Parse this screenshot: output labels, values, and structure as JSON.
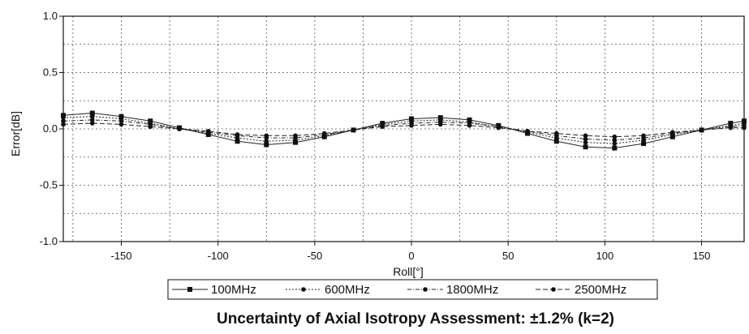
{
  "chart_data": {
    "type": "line",
    "xlabel": "Roll[°]",
    "ylabel": "Error[dB]",
    "xlim": [
      -180,
      172
    ],
    "ylim": [
      -1.0,
      1.0
    ],
    "x_ticks": [
      -150,
      -100,
      -50,
      0,
      50,
      100,
      150
    ],
    "y_ticks": [
      -1.0,
      -0.5,
      0.0,
      0.5,
      1.0
    ],
    "y_tick_labels": [
      "-1.0",
      "-0.5",
      "0.0",
      "0.5",
      "1.0"
    ],
    "grid": true,
    "legend_position": "bottom",
    "x": [
      -180,
      -165,
      -150,
      -135,
      -120,
      -105,
      -90,
      -75,
      -60,
      -45,
      -30,
      -15,
      0,
      15,
      30,
      45,
      60,
      75,
      90,
      105,
      120,
      135,
      150,
      165,
      172
    ],
    "series": [
      {
        "name": "100MHz",
        "marker": "square",
        "values": [
          0.12,
          0.14,
          0.11,
          0.07,
          0.01,
          -0.05,
          -0.11,
          -0.14,
          -0.12,
          -0.07,
          -0.01,
          0.05,
          0.09,
          0.1,
          0.08,
          0.03,
          -0.04,
          -0.11,
          -0.16,
          -0.17,
          -0.13,
          -0.07,
          -0.01,
          0.05,
          0.07
        ]
      },
      {
        "name": "600MHz",
        "marker": "dot",
        "values": [
          0.1,
          0.11,
          0.09,
          0.05,
          0.0,
          -0.04,
          -0.08,
          -0.11,
          -0.1,
          -0.06,
          -0.01,
          0.04,
          0.07,
          0.08,
          0.06,
          0.02,
          -0.03,
          -0.08,
          -0.12,
          -0.13,
          -0.1,
          -0.05,
          -0.01,
          0.03,
          0.05
        ]
      },
      {
        "name": "1800MHz",
        "marker": "dot",
        "values": [
          0.07,
          0.08,
          0.07,
          0.04,
          0.0,
          -0.03,
          -0.06,
          -0.08,
          -0.08,
          -0.05,
          -0.01,
          0.03,
          0.05,
          0.06,
          0.05,
          0.02,
          -0.02,
          -0.06,
          -0.09,
          -0.1,
          -0.08,
          -0.04,
          -0.01,
          0.02,
          0.03
        ]
      },
      {
        "name": "2500MHz",
        "marker": "dot",
        "values": [
          0.04,
          0.05,
          0.04,
          0.02,
          0.0,
          -0.02,
          -0.05,
          -0.06,
          -0.06,
          -0.04,
          -0.01,
          0.02,
          0.03,
          0.04,
          0.03,
          0.01,
          -0.02,
          -0.04,
          -0.06,
          -0.07,
          -0.06,
          -0.03,
          -0.01,
          0.01,
          0.01
        ]
      }
    ]
  },
  "footer": {
    "text": "Uncertainty of Axial Isotropy Assessment: ±1.2% (k=2)"
  }
}
